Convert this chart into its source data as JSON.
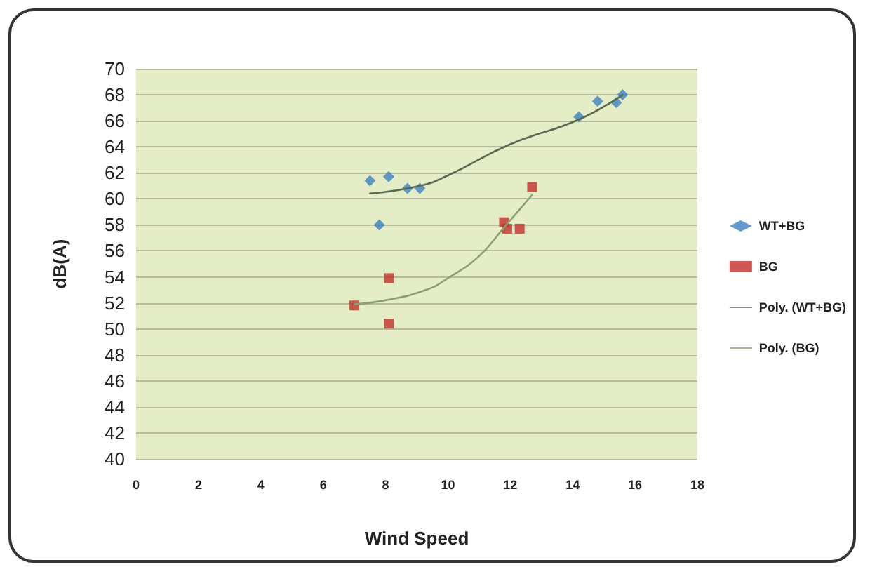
{
  "chart_data": {
    "type": "scatter",
    "xlabel": "Wind Speed",
    "ylabel": "dB(A)",
    "xlim": [
      0,
      18
    ],
    "xticks": [
      0,
      2,
      4,
      6,
      8,
      10,
      12,
      14,
      16,
      18
    ],
    "ylim": [
      40,
      70
    ],
    "yticks": [
      40,
      42,
      44,
      46,
      48,
      50,
      52,
      54,
      56,
      58,
      60,
      62,
      64,
      66,
      68,
      70
    ],
    "grid": "y",
    "legend": "right",
    "series": [
      {
        "name": "WT+BG",
        "color": "#3f7fc0",
        "marker": "diamond",
        "x": [
          7.5,
          8.1,
          8.7,
          9.1,
          7.8,
          14.2,
          14.8,
          15.4,
          15.6
        ],
        "values": [
          61.4,
          61.7,
          60.8,
          60.8,
          58.0,
          66.3,
          67.5,
          67.4,
          68.0
        ]
      },
      {
        "name": "BG",
        "color": "#c0302a",
        "marker": "square",
        "x": [
          7.0,
          8.1,
          8.1,
          11.8,
          11.9,
          12.3,
          12.7
        ],
        "values": [
          51.8,
          53.9,
          50.4,
          58.2,
          57.7,
          57.7,
          60.9
        ]
      },
      {
        "name": "Poly. (WT+BG)",
        "type": "line",
        "color": "#5a6a50",
        "marker": "none",
        "x": [
          7.5,
          9.1,
          10,
          12,
          14.2,
          15.6
        ],
        "values": [
          60.4,
          61.0,
          61.8,
          64.2,
          66.1,
          68.0
        ]
      },
      {
        "name": "Poly. (BG)",
        "type": "line",
        "color": "#8aa070",
        "marker": "none",
        "x": [
          7.0,
          8,
          9.3,
          10,
          11,
          11.8,
          12.7
        ],
        "values": [
          51.9,
          52.2,
          53.0,
          53.9,
          55.6,
          57.8,
          60.3
        ]
      }
    ]
  }
}
